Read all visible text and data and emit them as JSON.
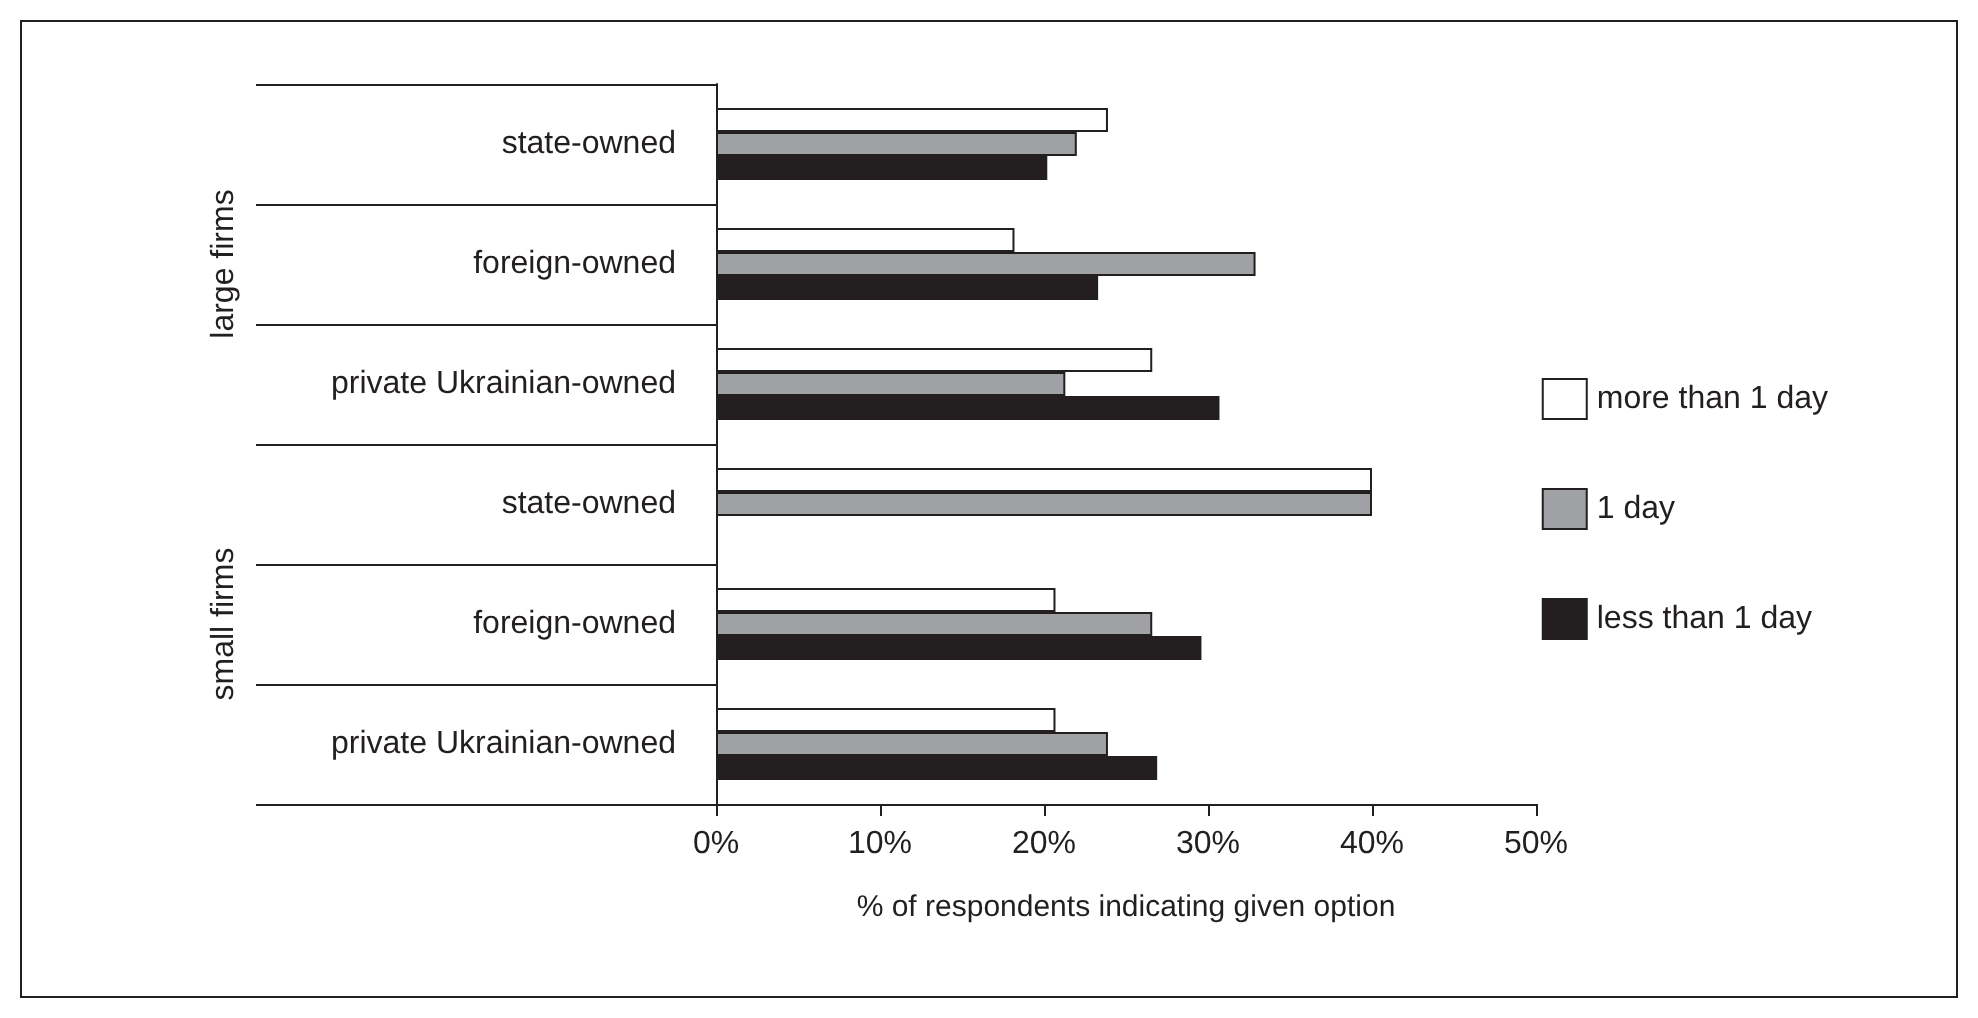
{
  "chart_data": {
    "type": "bar",
    "orientation": "horizontal",
    "xlabel": "% of respondents indicating given option",
    "categories": [
      "state-owned",
      "foreign-owned",
      "private Ukrainian-owned",
      "state-owned",
      "foreign-owned",
      "private Ukrainian-owned"
    ],
    "annotations": [
      "large firms",
      "small firms"
    ],
    "series": [
      {
        "name": "more than 1 day",
        "color": "#ffffff",
        "values": [
          23.9,
          18.2,
          26.6,
          40,
          20.7,
          20.7
        ]
      },
      {
        "name": "1 day",
        "color": "#a0a1a4",
        "values": [
          22.0,
          32.9,
          21.3,
          40,
          26.6,
          23.9
        ]
      },
      {
        "name": "less than 1 day",
        "color": "#231f20",
        "values": [
          20.2,
          23.3,
          30.7,
          null,
          29.6,
          26.9
        ]
      }
    ],
    "xlim": [
      0,
      50
    ],
    "xticks": [
      {
        "value": 0,
        "label": "0%"
      },
      {
        "value": 10,
        "label": "10%"
      },
      {
        "value": 20,
        "label": "20%"
      },
      {
        "value": 30,
        "label": "30%"
      },
      {
        "value": 40,
        "label": "40%"
      },
      {
        "value": 50,
        "label": "50%"
      }
    ],
    "legend": "right",
    "grid": false
  }
}
